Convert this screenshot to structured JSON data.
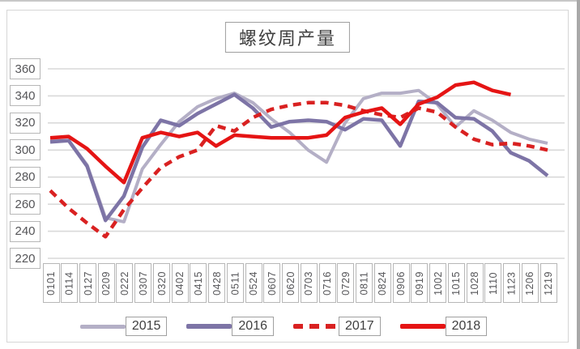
{
  "title": "螺纹周产量",
  "colors": {
    "grid": "#d9d9d9",
    "axis_text": "#555558",
    "box_border": "#b7b7b7",
    "series_2015": "#b4afc6",
    "series_2016": "#7d74a6",
    "series_2017": "#d92121",
    "series_2018": "#e51414"
  },
  "y_axis_labels": [
    "360",
    "340",
    "320",
    "300",
    "280",
    "260",
    "240",
    "220"
  ],
  "legend_labels": [
    "2015",
    "2016",
    "2017",
    "2018"
  ],
  "chart_data": {
    "type": "line",
    "title": "螺纹周产量",
    "xlabel": "",
    "ylabel": "",
    "ylim": [
      220,
      360
    ],
    "y_ticks": [
      360,
      340,
      320,
      300,
      280,
      260,
      240,
      220
    ],
    "grid": true,
    "legend_position": "bottom",
    "categories": [
      "0101",
      "0114",
      "0127",
      "0209",
      "0222",
      "0307",
      "0320",
      "0402",
      "0415",
      "0428",
      "0511",
      "0524",
      "0607",
      "0620",
      "0703",
      "0716",
      "0729",
      "0811",
      "0824",
      "0906",
      "0919",
      "1002",
      "1015",
      "1028",
      "1110",
      "1123",
      "1206",
      "1219"
    ],
    "series": [
      {
        "name": "2015",
        "color": "#b4afc6",
        "style": "solid",
        "width": 4,
        "values": [
          307,
          307,
          289,
          250,
          247,
          286,
          304,
          321,
          332,
          338,
          342,
          335,
          323,
          313,
          300,
          291,
          320,
          338,
          342,
          342,
          344,
          334,
          317,
          329,
          322,
          313,
          308,
          305
        ]
      },
      {
        "name": "2016",
        "color": "#7d74a6",
        "style": "solid",
        "width": 4.5,
        "values": [
          306,
          307,
          288,
          248,
          266,
          302,
          322,
          318,
          327,
          334,
          341,
          331,
          317,
          321,
          322,
          321,
          315,
          323,
          322,
          303,
          336,
          335,
          324,
          323,
          314,
          298,
          292,
          281
        ]
      },
      {
        "name": "2017",
        "color": "#d92121",
        "style": "dashed",
        "width": 4.5,
        "values": [
          270,
          257,
          246,
          236,
          256,
          272,
          287,
          295,
          300,
          318,
          314,
          324,
          330,
          333,
          335,
          335,
          333,
          329,
          326,
          324,
          331,
          328,
          317,
          308,
          304,
          305,
          303,
          300
        ]
      },
      {
        "name": "2018",
        "color": "#e51414",
        "style": "solid",
        "width": 4.5,
        "values": [
          309,
          310,
          301,
          288,
          276,
          309,
          313,
          310,
          313,
          303,
          311,
          310,
          309,
          309,
          309,
          311,
          324,
          328,
          331,
          319,
          334,
          339,
          348,
          350,
          344,
          341,
          null,
          null
        ]
      }
    ]
  }
}
